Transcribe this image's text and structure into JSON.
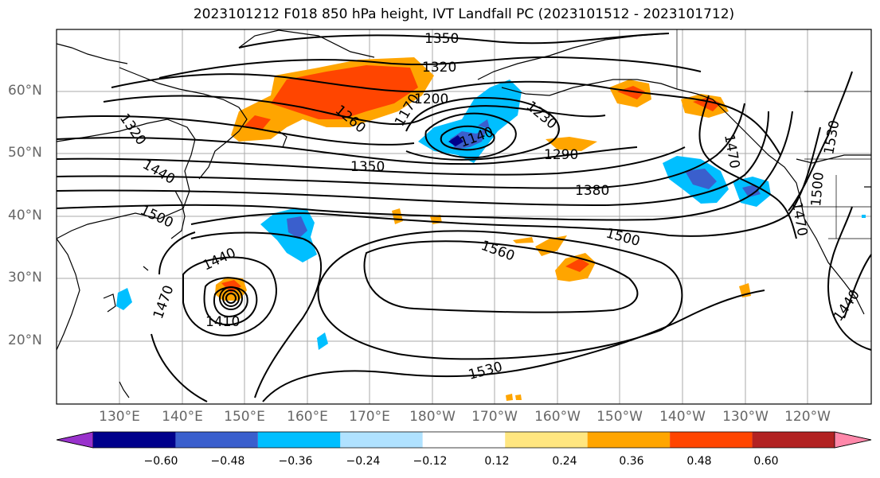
{
  "title": "2023101212 F018 850 hPa height, IVT Landfall PC (2023101512 - 2023101712)",
  "lat_labels": [
    "60°N",
    "50°N",
    "40°N",
    "30°N",
    "20°N"
  ],
  "lon_labels": [
    "130°E",
    "140°E",
    "150°E",
    "160°E",
    "170°E",
    "180°W",
    "170°W",
    "160°W",
    "150°W",
    "140°W",
    "130°W",
    "120°W"
  ],
  "contour_labels": [
    "1350",
    "1320",
    "1200",
    "1320",
    "1260",
    "1170",
    "1140",
    "1230",
    "1290",
    "1350",
    "1440",
    "1380",
    "1470",
    "1530",
    "1500",
    "1500",
    "1560",
    "1500",
    "1440",
    "1470",
    "1410",
    "1530",
    "1440",
    "1470"
  ],
  "colorbar": {
    "ticks": [
      "−0.60",
      "−0.48",
      "−0.36",
      "−0.24",
      "−0.12",
      "0.12",
      "0.24",
      "0.36",
      "0.48",
      "0.60"
    ],
    "colors": [
      "#9932cc",
      "#00008b",
      "#3a5fcd",
      "#00bfff",
      "#b0e2ff",
      "#ffffff",
      "#ffe680",
      "#ffa500",
      "#ff4500",
      "#b22222",
      "#ff88aa"
    ]
  }
}
